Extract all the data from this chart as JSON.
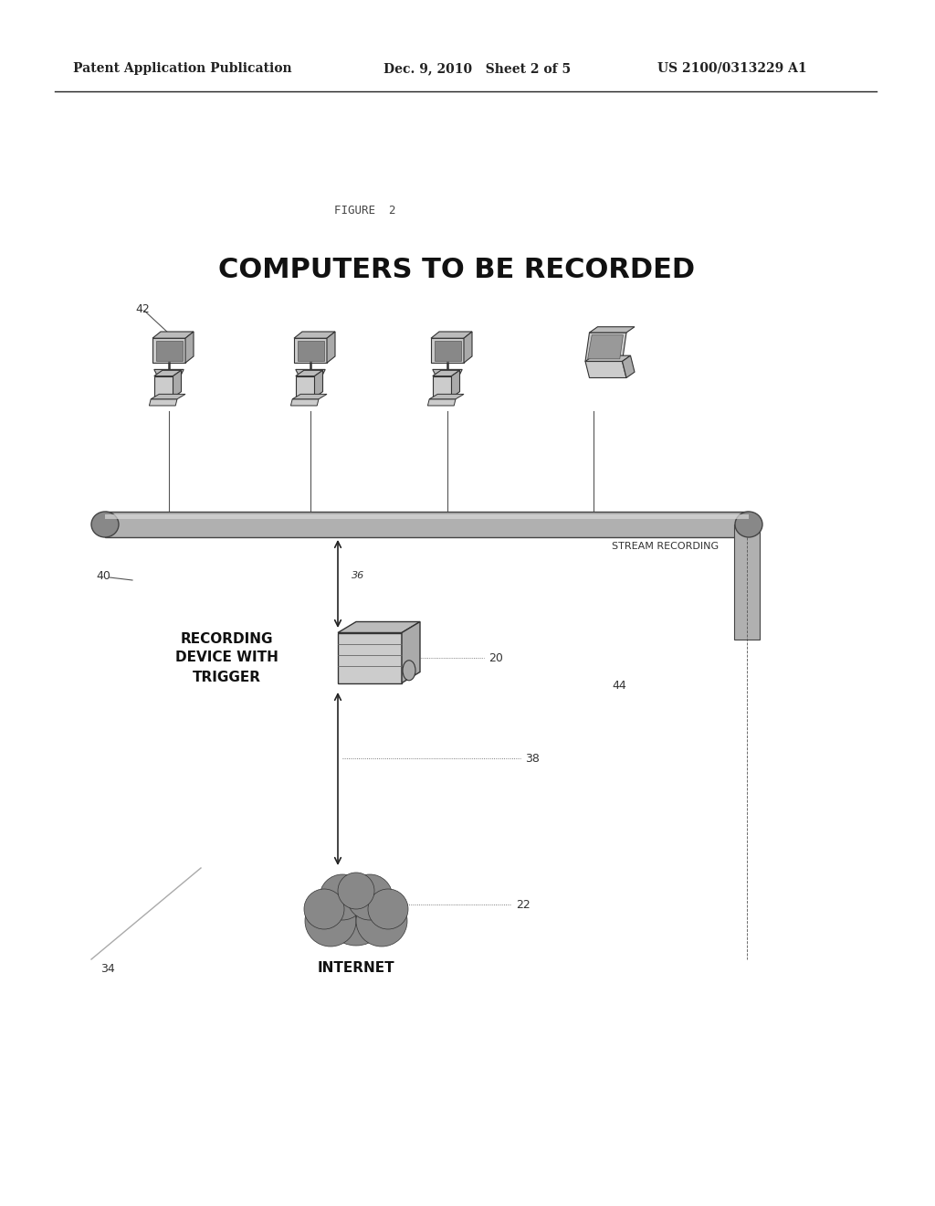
{
  "bg_color": "#ffffff",
  "header_left": "Patent Application Publication",
  "header_mid": "Dec. 9, 2010   Sheet 2 of 5",
  "header_right": "US 2100/0313229 A1",
  "figure_label": "FIGURE  2",
  "main_title": "COMPUTERS TO BE RECORDED",
  "label_42": "42",
  "label_40": "40",
  "label_36": "36",
  "label_20": "20",
  "label_22": "22",
  "label_38": "38",
  "label_44": "44",
  "label_34": "34",
  "label_stream": "STREAM RECORDING",
  "label_recording": "RECORDING\nDEVICE WITH\nTRIGGER",
  "label_internet": "INTERNET"
}
